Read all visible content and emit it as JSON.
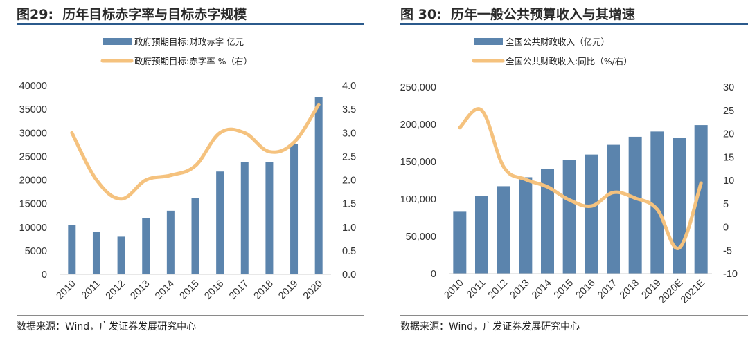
{
  "colors": {
    "bar": "#5b84ad",
    "line": "#f5c27e",
    "title_rule": "#2b5a8c"
  },
  "chart_data": [
    {
      "type": "bar",
      "fig_label": "图29:",
      "title": "历年目标赤字率与目标赤字规模",
      "source": "数据来源：Wind，广发证券发展研究中心",
      "categories": [
        "2010",
        "2011",
        "2012",
        "2013",
        "2014",
        "2015",
        "2016",
        "2017",
        "2018",
        "2019",
        "2020"
      ],
      "ylim": [
        0,
        40000
      ],
      "y_ticks": [
        "0",
        "5000",
        "10000",
        "15000",
        "20000",
        "25000",
        "30000",
        "35000",
        "40000"
      ],
      "y2lim": [
        0,
        4
      ],
      "y2_ticks": [
        "0.0",
        "0.5",
        "1.0",
        "1.5",
        "2.0",
        "2.5",
        "3.0",
        "3.5",
        "4.0"
      ],
      "series": [
        {
          "name": "政府预期目标:财政赤字 亿元",
          "kind": "bar",
          "axis": "left",
          "values": [
            10500,
            9000,
            8000,
            12000,
            13500,
            16200,
            21800,
            23800,
            23800,
            27600,
            37600
          ]
        },
        {
          "name": "政府预期目标:赤字率 %（右）",
          "kind": "line",
          "axis": "right",
          "values": [
            3.0,
            2.0,
            1.6,
            2.0,
            2.1,
            2.3,
            3.0,
            3.0,
            2.6,
            2.8,
            3.6
          ]
        }
      ]
    },
    {
      "type": "bar",
      "fig_label": "图 30:",
      "title": "历年一般公共预算收入与其增速",
      "source": "数据来源：Wind，广发证券发展研究中心",
      "categories": [
        "2010",
        "2011",
        "2012",
        "2013",
        "2014",
        "2015",
        "2016",
        "2017",
        "2018",
        "2019",
        "2020E",
        "2021E"
      ],
      "ylim": [
        0,
        250000
      ],
      "y_ticks": [
        "0",
        "50,000",
        "100,000",
        "150,000",
        "200,000",
        "250,000"
      ],
      "y2lim": [
        -10,
        30
      ],
      "y2_ticks": [
        "-10",
        "-5",
        "0",
        "5",
        "10",
        "15",
        "20",
        "25",
        "30"
      ],
      "series": [
        {
          "name": "全国公共财政收入（亿元）",
          "kind": "bar",
          "axis": "left",
          "values": [
            83000,
            103800,
            117200,
            129200,
            140400,
            152300,
            159600,
            172600,
            183400,
            190400,
            182000,
            199000
          ]
        },
        {
          "name": "全国公共财政收入:同比（%/右）",
          "kind": "line",
          "axis": "right",
          "values": [
            21.3,
            25.0,
            12.9,
            10.2,
            8.6,
            5.8,
            4.5,
            7.4,
            6.2,
            3.8,
            -4.5,
            9.4
          ]
        }
      ]
    }
  ]
}
